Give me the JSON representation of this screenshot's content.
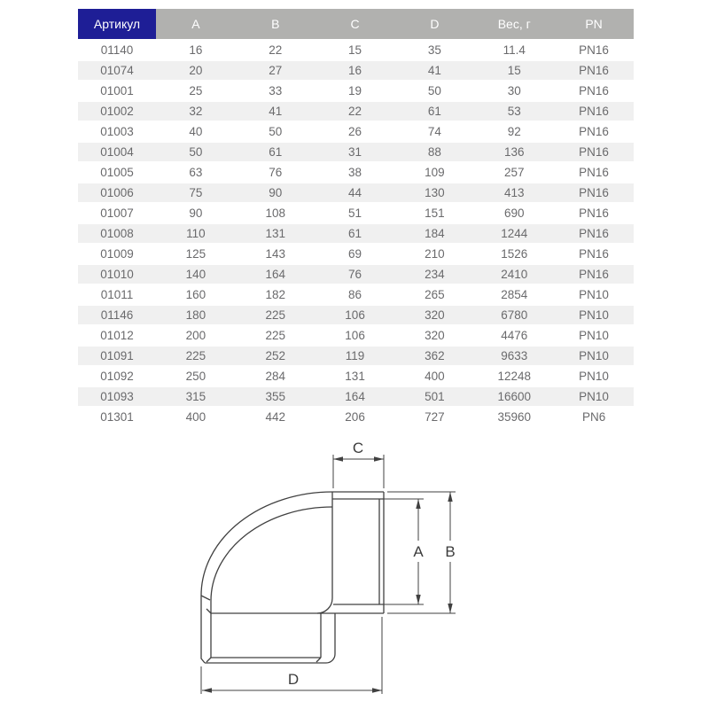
{
  "table": {
    "columns": [
      {
        "key": "article",
        "label": "Артикул"
      },
      {
        "key": "a",
        "label": "A"
      },
      {
        "key": "b",
        "label": "B"
      },
      {
        "key": "c",
        "label": "C"
      },
      {
        "key": "d",
        "label": "D"
      },
      {
        "key": "weight",
        "label": "Вес, г"
      },
      {
        "key": "pn",
        "label": "PN"
      }
    ],
    "rows": [
      [
        "01140",
        "16",
        "22",
        "15",
        "35",
        "11.4",
        "PN16"
      ],
      [
        "01074",
        "20",
        "27",
        "16",
        "41",
        "15",
        "PN16"
      ],
      [
        "01001",
        "25",
        "33",
        "19",
        "50",
        "30",
        "PN16"
      ],
      [
        "01002",
        "32",
        "41",
        "22",
        "61",
        "53",
        "PN16"
      ],
      [
        "01003",
        "40",
        "50",
        "26",
        "74",
        "92",
        "PN16"
      ],
      [
        "01004",
        "50",
        "61",
        "31",
        "88",
        "136",
        "PN16"
      ],
      [
        "01005",
        "63",
        "76",
        "38",
        "109",
        "257",
        "PN16"
      ],
      [
        "01006",
        "75",
        "90",
        "44",
        "130",
        "413",
        "PN16"
      ],
      [
        "01007",
        "90",
        "108",
        "51",
        "151",
        "690",
        "PN16"
      ],
      [
        "01008",
        "110",
        "131",
        "61",
        "184",
        "1244",
        "PN16"
      ],
      [
        "01009",
        "125",
        "143",
        "69",
        "210",
        "1526",
        "PN16"
      ],
      [
        "01010",
        "140",
        "164",
        "76",
        "234",
        "2410",
        "PN16"
      ],
      [
        "01011",
        "160",
        "182",
        "86",
        "265",
        "2854",
        "PN10"
      ],
      [
        "01146",
        "180",
        "225",
        "106",
        "320",
        "6780",
        "PN10"
      ],
      [
        "01012",
        "200",
        "225",
        "106",
        "320",
        "4476",
        "PN10"
      ],
      [
        "01091",
        "225",
        "252",
        "119",
        "362",
        "9633",
        "PN10"
      ],
      [
        "01092",
        "250",
        "284",
        "131",
        "400",
        "12248",
        "PN10"
      ],
      [
        "01093",
        "315",
        "355",
        "164",
        "501",
        "16600",
        "PN10"
      ],
      [
        "01301",
        "400",
        "442",
        "206",
        "727",
        "35960",
        "PN6"
      ]
    ]
  },
  "diagram": {
    "labels": {
      "a": "A",
      "b": "B",
      "c": "C",
      "d": "D"
    }
  },
  "colors": {
    "header_article_bg": "#1e1e96",
    "header_bg": "#b1b1af",
    "header_text": "#ffffff",
    "row_alt_bg": "#f0f0f0",
    "row_text": "#6a6a6c",
    "drawing_line": "#404040"
  }
}
